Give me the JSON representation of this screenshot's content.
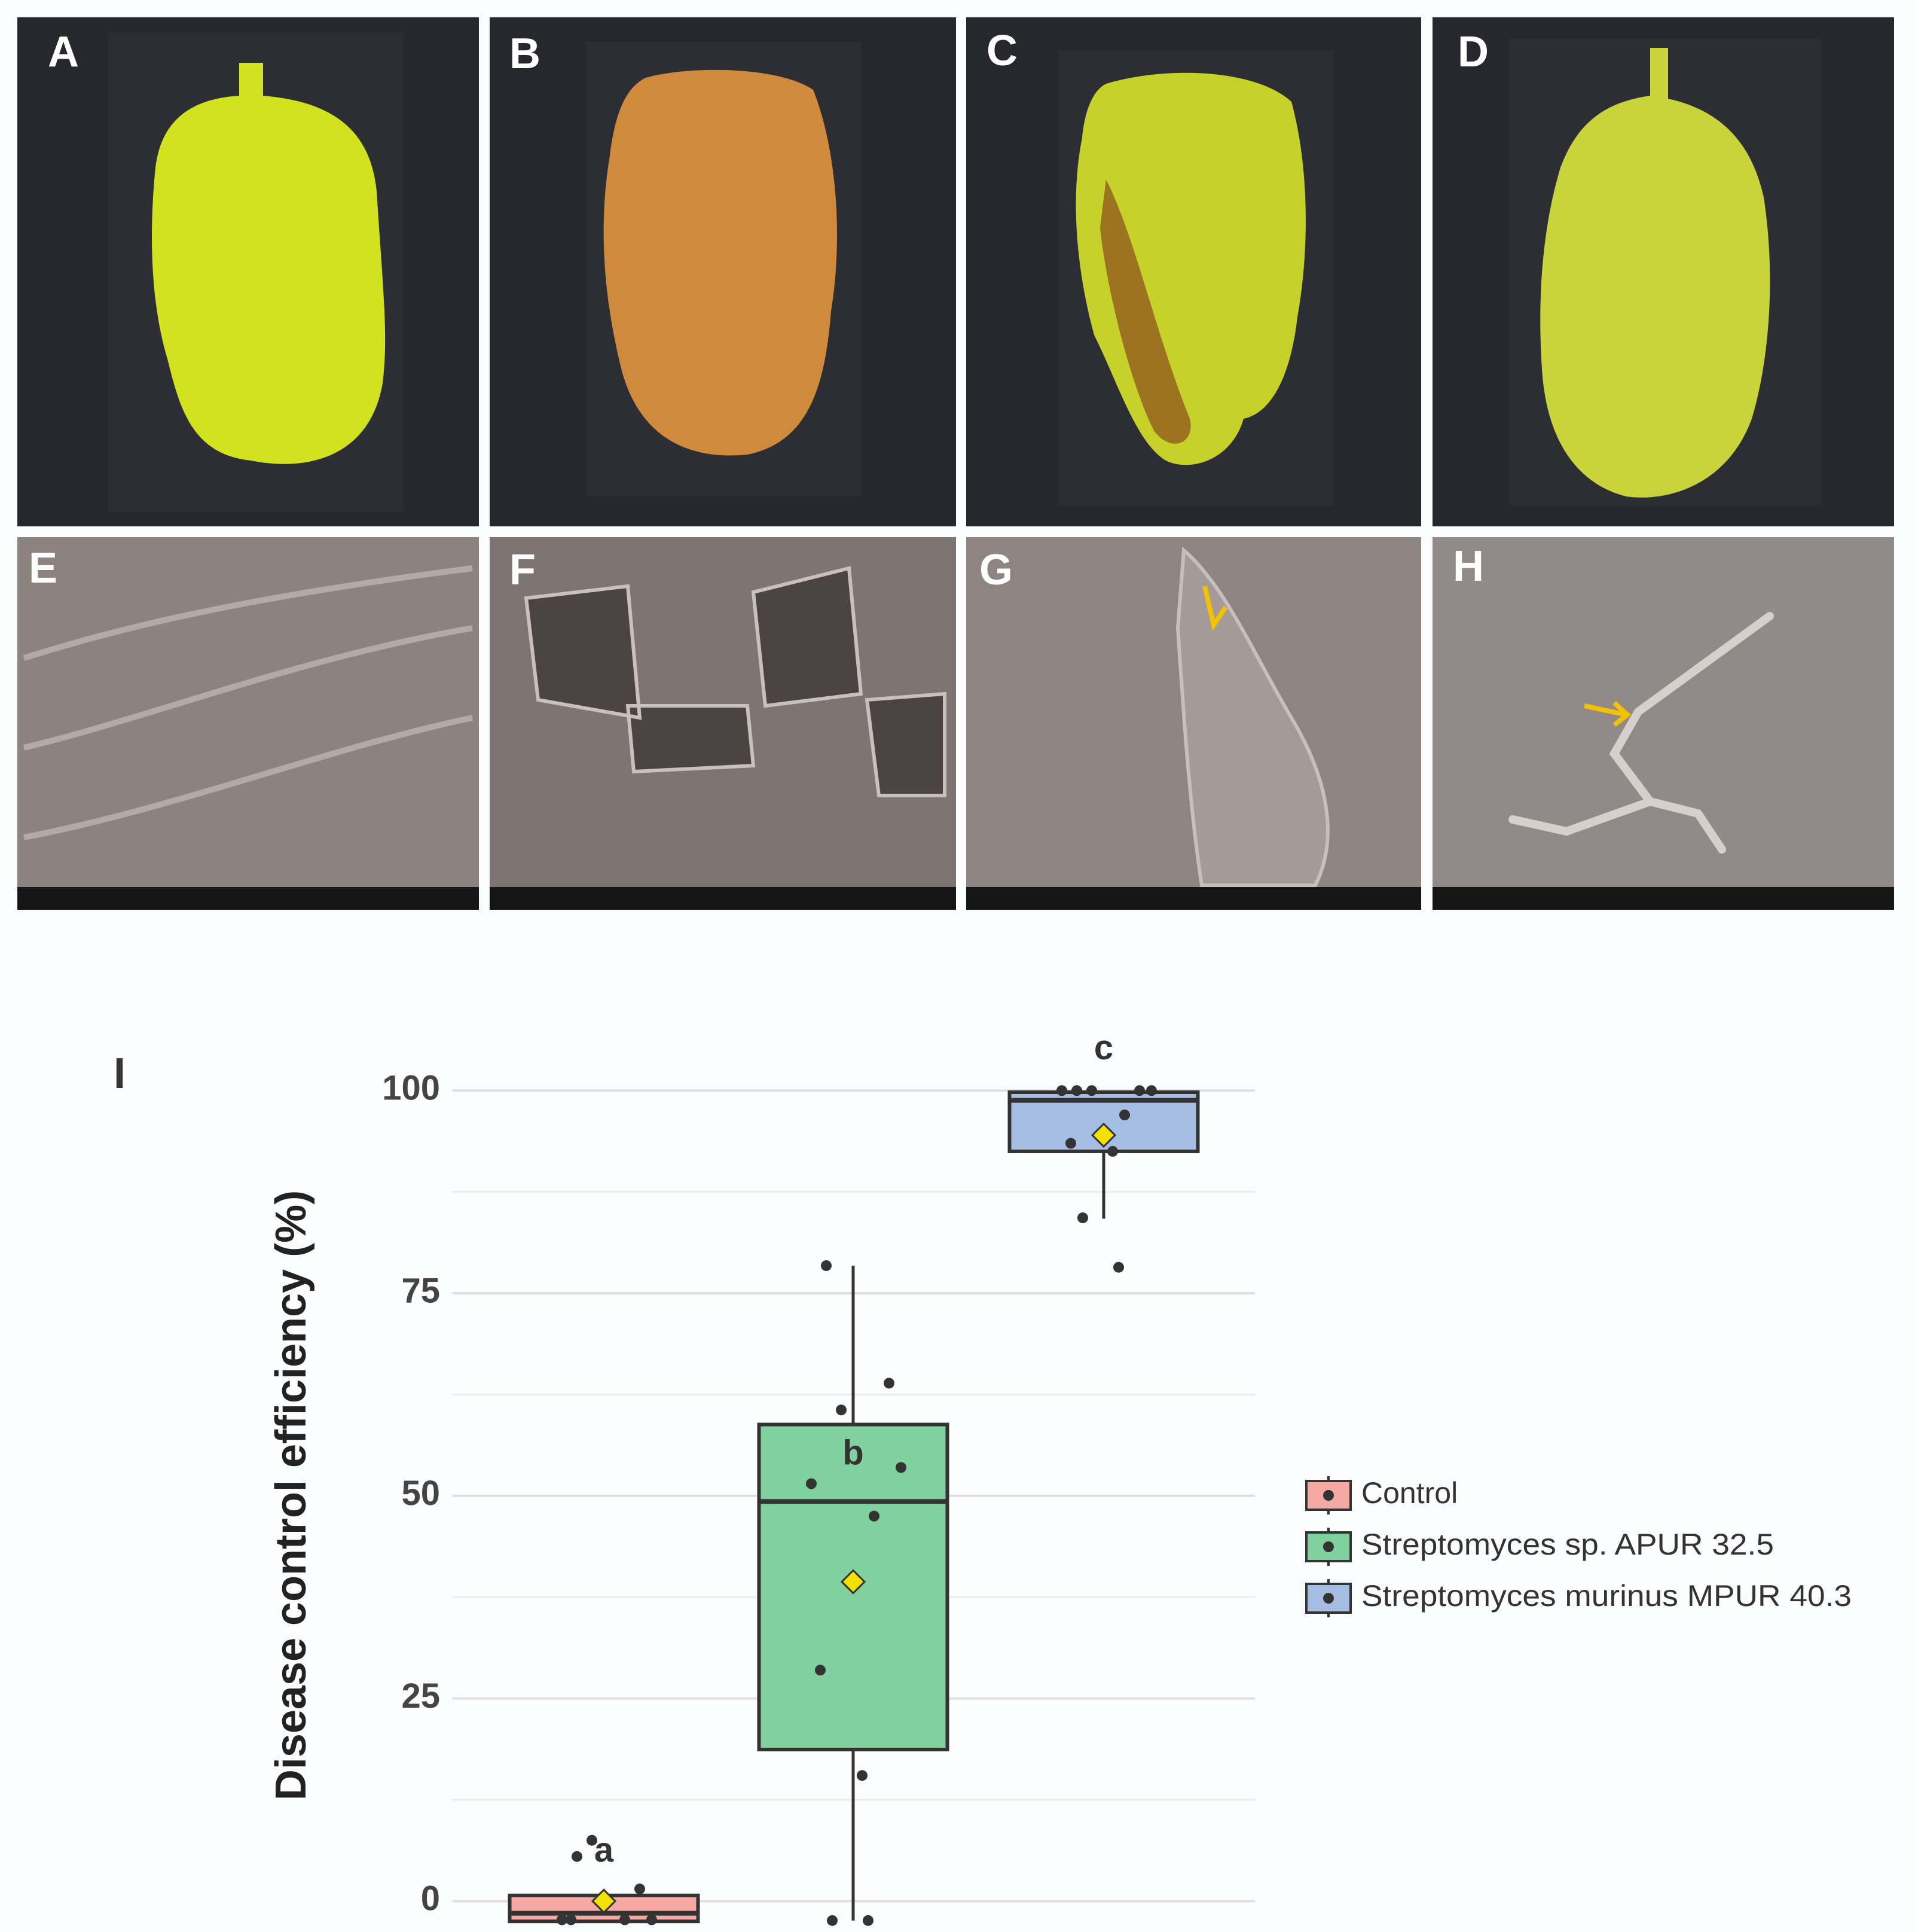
{
  "panel_labels": [
    "A",
    "B",
    "C",
    "D",
    "E",
    "F",
    "G",
    "H",
    "I"
  ],
  "chart_data": {
    "type": "box",
    "ylabel": "Disease control efficiency (%)",
    "ylim": [
      -3,
      106
    ],
    "yticks": [
      0,
      25,
      50,
      75,
      100
    ],
    "yminor": [
      12.5,
      37.5,
      62.5,
      87.5
    ],
    "grid": true,
    "legend": "right",
    "series": [
      {
        "name": "Control",
        "color": "#f6a9a3",
        "min": -2.5,
        "q1": -2.5,
        "median": -1.5,
        "q3": 0.7,
        "max": 0.7,
        "mean": 0,
        "points": [
          5.5,
          1.5,
          7.5,
          -2.3,
          -2.3,
          -2.3,
          -2.3
        ],
        "letter": "a"
      },
      {
        "name": "Streptomyces sp. APUR 32.5",
        "color": "#80d19e",
        "min": -2.4,
        "q1": 18.7,
        "median": 49.3,
        "q3": 58.8,
        "max": 78.4,
        "mean": 39.4,
        "points": [
          78.4,
          63.9,
          60.6,
          53.5,
          51.5,
          47.5,
          28.5,
          15.5,
          -2.4,
          -2.4
        ],
        "letter": "b"
      },
      {
        "name": "Streptomyces murinus MPUR 40.3",
        "color": "#a6bde3",
        "min": 84.2,
        "q1": 92.5,
        "median": 98.8,
        "q3": 99.8,
        "max": 100,
        "mean": 94.5,
        "points": [
          100,
          100,
          100,
          100,
          100,
          97,
          93.5,
          92.5,
          84.3,
          78.2
        ],
        "letter": "c"
      }
    ]
  }
}
